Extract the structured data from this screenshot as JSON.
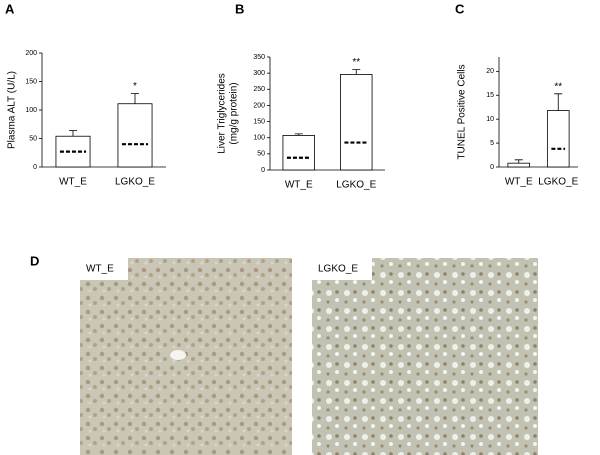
{
  "chart_data": [
    {
      "type": "bar",
      "panel": "A",
      "ylabel": [
        "Plasma ALT (U/L)"
      ],
      "categories": [
        "WT_E",
        "LGKO_E"
      ],
      "values": [
        54,
        111
      ],
      "errors": [
        10,
        18
      ],
      "reference_values": [
        27,
        40
      ],
      "annotations": [
        null,
        "*"
      ],
      "color": "#ffffff",
      "ylim": [
        0,
        200
      ],
      "yticks": [
        0,
        50,
        100,
        150,
        200
      ]
    },
    {
      "type": "bar",
      "panel": "B",
      "ylabel": [
        "Liver Triglycerides",
        "(mg/g protein)"
      ],
      "categories": [
        "WT_E",
        "LGKO_E"
      ],
      "values": [
        107,
        296
      ],
      "errors": [
        5,
        15
      ],
      "reference_values": [
        38,
        85
      ],
      "annotations": [
        null,
        "**"
      ],
      "color": "#ffffff",
      "ylim": [
        0,
        350
      ],
      "yticks": [
        0,
        50,
        100,
        150,
        200,
        250,
        300,
        350
      ]
    },
    {
      "type": "bar",
      "panel": "C",
      "ylabel": [
        "TUNEL Positive Cells"
      ],
      "categories": [
        "WT_E",
        "LGKO_E"
      ],
      "values": [
        0.8,
        11.8
      ],
      "errors": [
        0.7,
        3.5
      ],
      "reference_values": [
        null,
        3.8
      ],
      "annotations": [
        null,
        "**"
      ],
      "color": "#ffffff",
      "ylim": [
        0,
        23
      ],
      "yticks": [
        0,
        5,
        10,
        15,
        20
      ]
    }
  ],
  "panel_d": {
    "label": "D",
    "images": [
      "WT_E",
      "LGKO_E"
    ]
  }
}
